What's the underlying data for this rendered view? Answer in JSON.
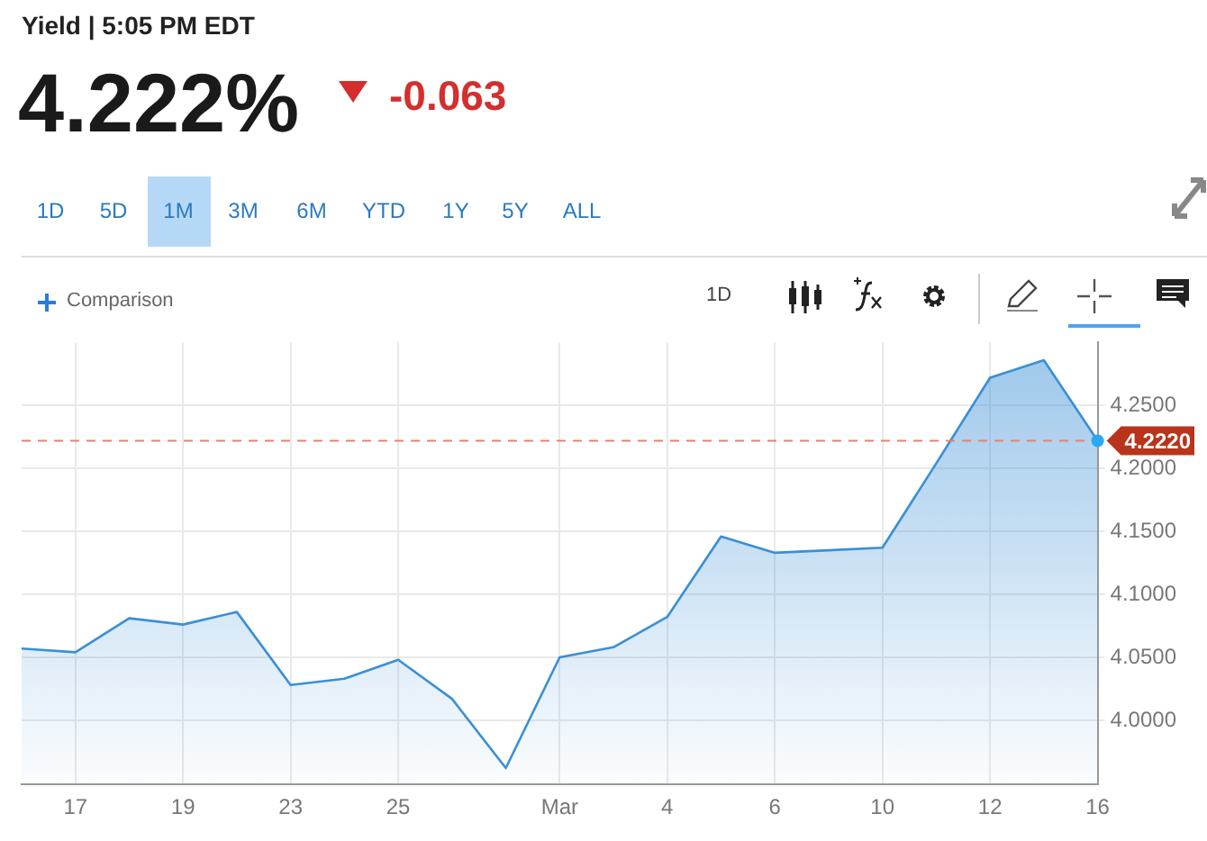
{
  "chart_data": {
    "type": "area",
    "title": "Yield | 5:05 PM EDT",
    "annotations": [
      "4.222%",
      "-0.063",
      "1D",
      "5D",
      "1M",
      "3M",
      "6M",
      "YTD",
      "1Y",
      "5Y",
      "ALL",
      "Comparison",
      "1D"
    ],
    "categories": [
      null,
      "17",
      null,
      "19",
      null,
      "23",
      null,
      "25",
      null,
      null,
      "Mar",
      null,
      "4",
      null,
      "6",
      null,
      "10",
      null,
      "12",
      null,
      "16"
    ],
    "series": [
      {
        "color": "#3a8fd6",
        "values": [
          4.057,
          4.054,
          4.081,
          4.076,
          4.086,
          4.028,
          4.033,
          4.048,
          4.017,
          3.962,
          4.05,
          4.058,
          4.082,
          4.146,
          4.133,
          4.135,
          4.137,
          4.204,
          4.272,
          4.286,
          4.222
        ]
      }
    ],
    "ylim": [
      3.949,
      4.3
    ],
    "yticks": [
      {
        "value": 4.0,
        "label": "4.0000"
      },
      {
        "value": 4.05,
        "label": "4.0500"
      },
      {
        "value": 4.1,
        "label": "4.1000"
      },
      {
        "value": 4.15,
        "label": "4.1500"
      },
      {
        "value": 4.2,
        "label": "4.2000"
      },
      {
        "value": 4.25,
        "label": "4.2500"
      }
    ],
    "ref_lines": [
      {
        "axis": "y",
        "value": 4.222,
        "label": "4.2220",
        "color": "#e8826a",
        "line_style": "dashed"
      }
    ],
    "grid": true,
    "legend": false,
    "marker": "none",
    "line_style": "solid"
  }
}
